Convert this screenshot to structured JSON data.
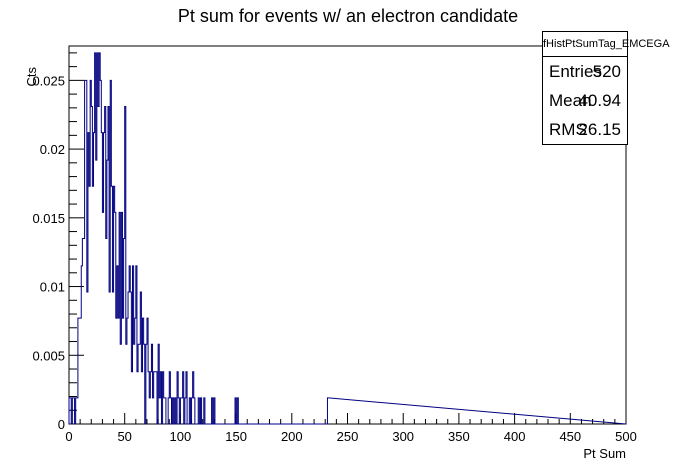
{
  "chart_data": {
    "type": "histogram",
    "title": "Pt sum for events w/ an electron candidate",
    "xlabel": "Pt Sum",
    "ylabel": "Cts",
    "xlim": [
      0,
      500
    ],
    "ylim": [
      0,
      0.0275
    ],
    "x_ticks": [
      "0",
      "50",
      "100",
      "150",
      "200",
      "250",
      "300",
      "350",
      "400",
      "450",
      "500"
    ],
    "y_ticks": [
      "0",
      "0.005",
      "0.01",
      "0.015",
      "0.02",
      "0.025"
    ],
    "bin_width": 1,
    "bins": [
      [
        0,
        0.0019
      ],
      [
        1,
        0.0019
      ],
      [
        2,
        0.0
      ],
      [
        3,
        0.0019
      ],
      [
        4,
        0.0019
      ],
      [
        5,
        0.0
      ],
      [
        6,
        0.0019
      ],
      [
        7,
        0.0019
      ],
      [
        8,
        0.0077
      ],
      [
        9,
        0.0077
      ],
      [
        10,
        0.0077
      ],
      [
        11,
        0.0115
      ],
      [
        12,
        0.0135
      ],
      [
        13,
        0.0135
      ],
      [
        14,
        0.025
      ],
      [
        15,
        0.025
      ],
      [
        16,
        0.0096
      ],
      [
        17,
        0.0212
      ],
      [
        18,
        0.0173
      ],
      [
        19,
        0.025
      ],
      [
        20,
        0.0231
      ],
      [
        21,
        0.0173
      ],
      [
        22,
        0.0212
      ],
      [
        23,
        0.027
      ],
      [
        24,
        0.0192
      ],
      [
        25,
        0.027
      ],
      [
        26,
        0.0231
      ],
      [
        27,
        0.027
      ],
      [
        28,
        0.025
      ],
      [
        29,
        0.0212
      ],
      [
        30,
        0.0154
      ],
      [
        31,
        0.0212
      ],
      [
        32,
        0.0231
      ],
      [
        33,
        0.0135
      ],
      [
        34,
        0.0192
      ],
      [
        35,
        0.0231
      ],
      [
        36,
        0.0096
      ],
      [
        37,
        0.025
      ],
      [
        38,
        0.0173
      ],
      [
        39,
        0.0096
      ],
      [
        40,
        0.0173
      ],
      [
        41,
        0.0154
      ],
      [
        42,
        0.0077
      ],
      [
        43,
        0.0115
      ],
      [
        44,
        0.0077
      ],
      [
        45,
        0.0154
      ],
      [
        46,
        0.0058
      ],
      [
        47,
        0.0154
      ],
      [
        48,
        0.0077
      ],
      [
        49,
        0.0135
      ],
      [
        50,
        0.0231
      ],
      [
        51,
        0.0058
      ],
      [
        52,
        0.0077
      ],
      [
        53,
        0.0096
      ],
      [
        54,
        0.0115
      ],
      [
        55,
        0.0096
      ],
      [
        56,
        0.0038
      ],
      [
        57,
        0.0115
      ],
      [
        58,
        0.0058
      ],
      [
        59,
        0.0077
      ],
      [
        60,
        0.0115
      ],
      [
        61,
        0.0038
      ],
      [
        62,
        0.0058
      ],
      [
        63,
        0.0058
      ],
      [
        64,
        0.0096
      ],
      [
        65,
        0.0038
      ],
      [
        66,
        0.0077
      ],
      [
        67,
        0.0058
      ],
      [
        68,
        0.0
      ],
      [
        69,
        0.0058
      ],
      [
        70,
        0.0077
      ],
      [
        71,
        0.0038
      ],
      [
        72,
        0.0019
      ],
      [
        73,
        0.0038
      ],
      [
        74,
        0.0058
      ],
      [
        75,
        0.0019
      ],
      [
        76,
        0.0038
      ],
      [
        77,
        0.0038
      ],
      [
        78,
        0.0038
      ],
      [
        79,
        0.0
      ],
      [
        80,
        0.0058
      ],
      [
        81,
        0.0019
      ],
      [
        82,
        0.0038
      ],
      [
        83,
        0.0
      ],
      [
        84,
        0.0038
      ],
      [
        85,
        0.0019
      ],
      [
        86,
        0.0019
      ],
      [
        87,
        0.0
      ],
      [
        88,
        0.0
      ],
      [
        89,
        0.0019
      ],
      [
        90,
        0.0038
      ],
      [
        91,
        0.0019
      ],
      [
        92,
        0.0
      ],
      [
        93,
        0.0019
      ],
      [
        94,
        0.0
      ],
      [
        95,
        0.0019
      ],
      [
        96,
        0.0
      ],
      [
        97,
        0.0038
      ],
      [
        98,
        0.0019
      ],
      [
        99,
        0.0
      ],
      [
        100,
        0.0019
      ],
      [
        101,
        0.0019
      ],
      [
        102,
        0.0038
      ],
      [
        103,
        0.0
      ],
      [
        104,
        0.0019
      ],
      [
        105,
        0.0038
      ],
      [
        106,
        0.0
      ],
      [
        107,
        0.0
      ],
      [
        108,
        0.0019
      ],
      [
        109,
        0.0
      ],
      [
        110,
        0.0019
      ],
      [
        111,
        0.0038
      ],
      [
        112,
        0.0019
      ],
      [
        113,
        0.0
      ],
      [
        114,
        0.0
      ],
      [
        115,
        0.0
      ],
      [
        116,
        0.0019
      ],
      [
        117,
        0.0
      ],
      [
        118,
        0.0019
      ],
      [
        119,
        0.0
      ],
      [
        120,
        0.0
      ],
      [
        121,
        0.0019
      ],
      [
        122,
        0.0
      ],
      [
        123,
        0.0
      ],
      [
        124,
        0.0
      ],
      [
        125,
        0.0
      ],
      [
        126,
        0.0
      ],
      [
        127,
        0.0
      ],
      [
        128,
        0.0019
      ],
      [
        129,
        0.0
      ],
      [
        130,
        0.0019
      ],
      [
        131,
        0.0
      ],
      [
        132,
        0.0
      ],
      [
        133,
        0.0
      ],
      [
        134,
        0.0
      ],
      [
        135,
        0.0
      ],
      [
        136,
        0.0
      ],
      [
        137,
        0.0
      ],
      [
        138,
        0.0
      ],
      [
        139,
        0.0
      ],
      [
        140,
        0.0
      ],
      [
        141,
        0.0
      ],
      [
        142,
        0.0
      ],
      [
        143,
        0.0
      ],
      [
        144,
        0.0
      ],
      [
        145,
        0.0
      ],
      [
        146,
        0.0
      ],
      [
        147,
        0.0
      ],
      [
        148,
        0.0
      ],
      [
        149,
        0.0019
      ],
      [
        150,
        0.0
      ],
      [
        151,
        0.0019
      ],
      [
        232,
        0.0019
      ]
    ],
    "grid": false,
    "line_color": "#000080",
    "stats": {
      "name": "fHistPtSumTag_EMCEGA",
      "rows": [
        {
          "key": "Entries",
          "value": "520"
        },
        {
          "key": "Mean",
          "value": "40.94"
        },
        {
          "key": "RMS",
          "value": "26.15"
        }
      ]
    }
  }
}
